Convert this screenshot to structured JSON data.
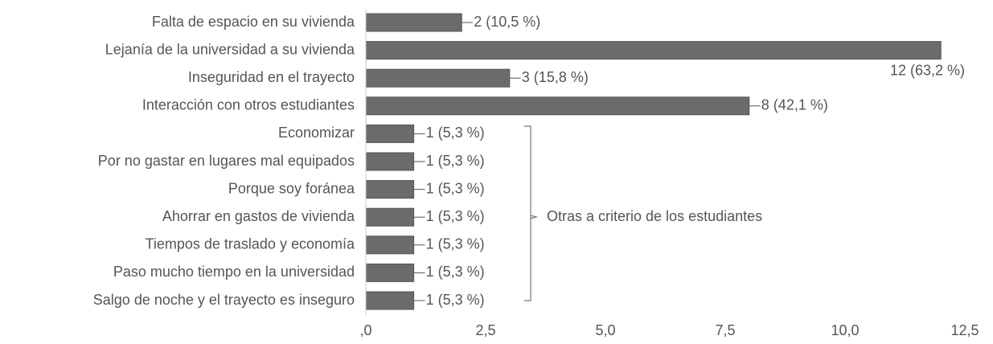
{
  "chart_data": {
    "type": "bar",
    "orientation": "horizontal",
    "categories": [
      "Falta de espacio en su vivienda",
      "Lejanía de la universidad a su vivienda",
      "Inseguridad en el trayecto",
      "Interacción con otros estudiantes",
      "Economizar",
      "Por no gastar en lugares mal equipados",
      "Porque soy foránea",
      "Ahorrar en gastos de vivienda",
      "Tiempos de traslado y economía",
      "Paso mucho tiempo en la universidad",
      "Salgo de noche y el trayecto es inseguro"
    ],
    "values": [
      2,
      12,
      3,
      8,
      1,
      1,
      1,
      1,
      1,
      1,
      1
    ],
    "value_labels": [
      "2 (10,5 %)",
      "12 (63,2 %)",
      "3 (15,8 %)",
      "8 (42,1 %)",
      "1 (5,3 %)",
      "1 (5,3 %)",
      "1 (5,3 %)",
      "1 (5,3 %)",
      "1 (5,3 %)",
      "1 (5,3 %)",
      "1 (5,3 %)"
    ],
    "color": "#6b6b6b",
    "xlim": [
      0,
      12.5
    ],
    "xticks": [
      {
        "value": 0,
        "label": ",0"
      },
      {
        "value": 2.5,
        "label": "2,5"
      },
      {
        "value": 5,
        "label": "5,0"
      },
      {
        "value": 7.5,
        "label": "7,5"
      },
      {
        "value": 10,
        "label": "10,0"
      },
      {
        "value": 12.5,
        "label": "12,5"
      }
    ],
    "annotation": "Otras a criterio de los estudiantes"
  }
}
